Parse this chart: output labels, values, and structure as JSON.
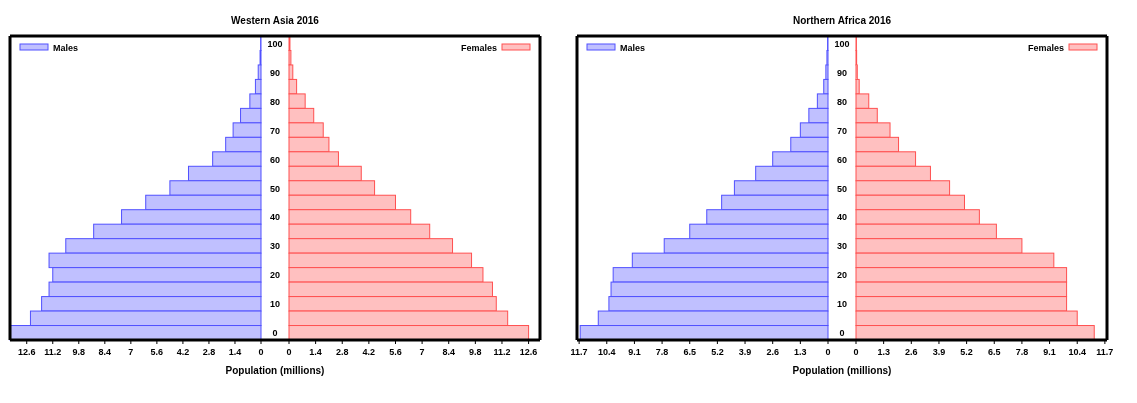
{
  "chart_data": [
    {
      "type": "bar",
      "orientation": "horizontal",
      "title": "Western Asia 2016",
      "legend": "top left",
      "xlim": [
        13.5,
        0
      ],
      "xticks": [
        12.6,
        11.2,
        9.8,
        8.4,
        7,
        5.6,
        4.2,
        2.8,
        1.4,
        0
      ],
      "series": [
        {
          "name": "Males",
          "color": "#c0c0ff",
          "values": [
            0.02,
            0.05,
            0.15,
            0.3,
            0.6,
            1.1,
            1.5,
            1.9,
            2.6,
            3.9,
            4.9,
            6.2,
            7.5,
            9.0,
            10.5,
            11.4,
            11.2,
            11.4,
            11.8,
            12.4,
            13.5
          ]
        }
      ]
    },
    {
      "type": "bar",
      "orientation": "horizontal",
      "xlabel": "Population (millions)",
      "categories": [
        "100",
        null,
        "90",
        null,
        "80",
        null,
        "70",
        null,
        "60",
        null,
        "50",
        null,
        "40",
        null,
        "30",
        null,
        "20",
        null,
        "10",
        null,
        "0"
      ],
      "legend": "top right",
      "xlim": [
        0,
        13.2
      ],
      "xticks": [
        0,
        1.4,
        2.8,
        4.2,
        5.6,
        7,
        8.4,
        9.8,
        11.2,
        12.6
      ],
      "series": [
        {
          "name": "Females",
          "color": "#ffc0c0",
          "values": [
            0.05,
            0.1,
            0.2,
            0.4,
            0.85,
            1.3,
            1.8,
            2.1,
            2.6,
            3.8,
            4.5,
            5.6,
            6.4,
            7.4,
            8.6,
            9.6,
            10.2,
            10.7,
            10.9,
            11.5,
            12.6
          ]
        }
      ]
    },
    {
      "type": "bar",
      "orientation": "horizontal",
      "title": "Northern Africa 2016",
      "legend": "top left",
      "xlim": [
        11.8,
        0
      ],
      "xticks": [
        11.7,
        10.4,
        9.1,
        7.8,
        6.5,
        5.2,
        3.9,
        2.6,
        1.3,
        0
      ],
      "series": [
        {
          "name": "Males",
          "color": "#c0c0ff",
          "values": [
            0.02,
            0.05,
            0.1,
            0.2,
            0.5,
            0.9,
            1.3,
            1.75,
            2.6,
            3.4,
            4.4,
            5.0,
            5.7,
            6.5,
            7.7,
            9.2,
            10.1,
            10.2,
            10.3,
            10.8,
            11.65
          ]
        }
      ]
    },
    {
      "type": "bar",
      "orientation": "horizontal",
      "xlabel": "Population (millions)",
      "categories": [
        "100",
        null,
        "90",
        null,
        "80",
        null,
        "70",
        null,
        "60",
        null,
        "50",
        null,
        "40",
        null,
        "30",
        null,
        "20",
        null,
        "10",
        null,
        "0"
      ],
      "legend": "top right",
      "xlim": [
        0,
        11.8
      ],
      "xticks": [
        0,
        1.3,
        2.6,
        3.9,
        5.2,
        6.5,
        7.8,
        9.1,
        10.4,
        11.7
      ],
      "series": [
        {
          "name": "Females",
          "color": "#ffc0c0",
          "values": [
            0.02,
            0.03,
            0.06,
            0.15,
            0.6,
            1.0,
            1.6,
            2.0,
            2.8,
            3.5,
            4.4,
            5.1,
            5.8,
            6.6,
            7.8,
            9.3,
            9.9,
            9.9,
            9.9,
            10.4,
            11.2
          ]
        }
      ]
    }
  ]
}
